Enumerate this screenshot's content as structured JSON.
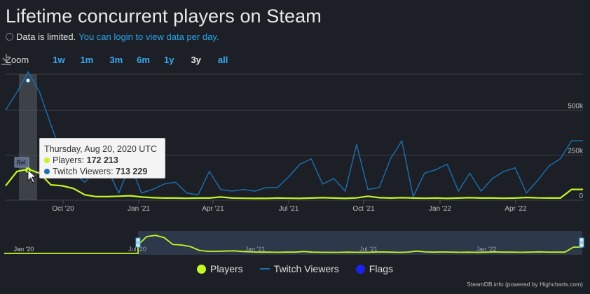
{
  "title": "Lifetime concurrent players on Steam",
  "notice": {
    "text": "Data is limited.",
    "link": "You can login to view data per day."
  },
  "zoom": {
    "label": "Zoom",
    "buttons": [
      "1w",
      "1m",
      "3m",
      "6m",
      "1y",
      "3y",
      "all"
    ],
    "active": "3y"
  },
  "legend": {
    "players": "Players",
    "twitch": "Twitch Viewers",
    "flags": "Flags"
  },
  "credit": "SteamDB.info (powered by Highcharts.com)",
  "tooltip": {
    "date": "Thursday, Aug 20, 2020 UTC",
    "players_label": "Players:",
    "players_value": "172 213",
    "twitch_label": "Twitch Viewers:",
    "twitch_value": "713 229"
  },
  "flag_label": "Rel",
  "colors": {
    "players": "#c4f724",
    "twitch": "#1d6fb0",
    "flags": "#1a22f0",
    "background": "#1c2026"
  },
  "chart_data": {
    "type": "line",
    "y_axis": {
      "min": 0,
      "max": 700000,
      "ticks": [
        0,
        250000,
        500000
      ],
      "tick_labels": [
        "0",
        "250k",
        "500k"
      ]
    },
    "x_tick_labels": [
      "Oct '20",
      "Jan '21",
      "Apr '21",
      "Jul '21",
      "Oct '21",
      "Jan '22",
      "Apr '22"
    ],
    "navigator_labels": [
      "Jan '20",
      "Jul '20",
      "Jan '21",
      "Jul '21",
      "Jan '22"
    ],
    "series": [
      {
        "name": "Players",
        "values": [
          80000,
          160000,
          172213,
          150000,
          85000,
          80000,
          65000,
          30000,
          20000,
          20000,
          22000,
          25000,
          18000,
          14000,
          12000,
          12000,
          11000,
          12000,
          12000,
          18000,
          12000,
          11000,
          10000,
          10000,
          12000,
          11000,
          10000,
          12000,
          14000,
          12000,
          10000,
          13000,
          22000,
          14000,
          12000,
          14000,
          12000,
          11000,
          12000,
          10000,
          12000,
          14000,
          12000,
          12000,
          11000,
          12000,
          15000,
          13000,
          12000,
          12000,
          60000,
          60000
        ]
      },
      {
        "name": "Twitch Viewers",
        "values": [
          500000,
          600000,
          713229,
          600000,
          420000,
          250000,
          150000,
          100000,
          170000,
          170000,
          40000,
          200000,
          40000,
          60000,
          90000,
          100000,
          40000,
          30000,
          160000,
          60000,
          50000,
          60000,
          50000,
          70000,
          70000,
          130000,
          200000,
          230000,
          90000,
          120000,
          50000,
          310000,
          60000,
          70000,
          230000,
          330000,
          20000,
          150000,
          170000,
          200000,
          50000,
          150000,
          50000,
          120000,
          160000,
          180000,
          40000,
          110000,
          190000,
          230000,
          330000,
          330000
        ]
      }
    ]
  }
}
